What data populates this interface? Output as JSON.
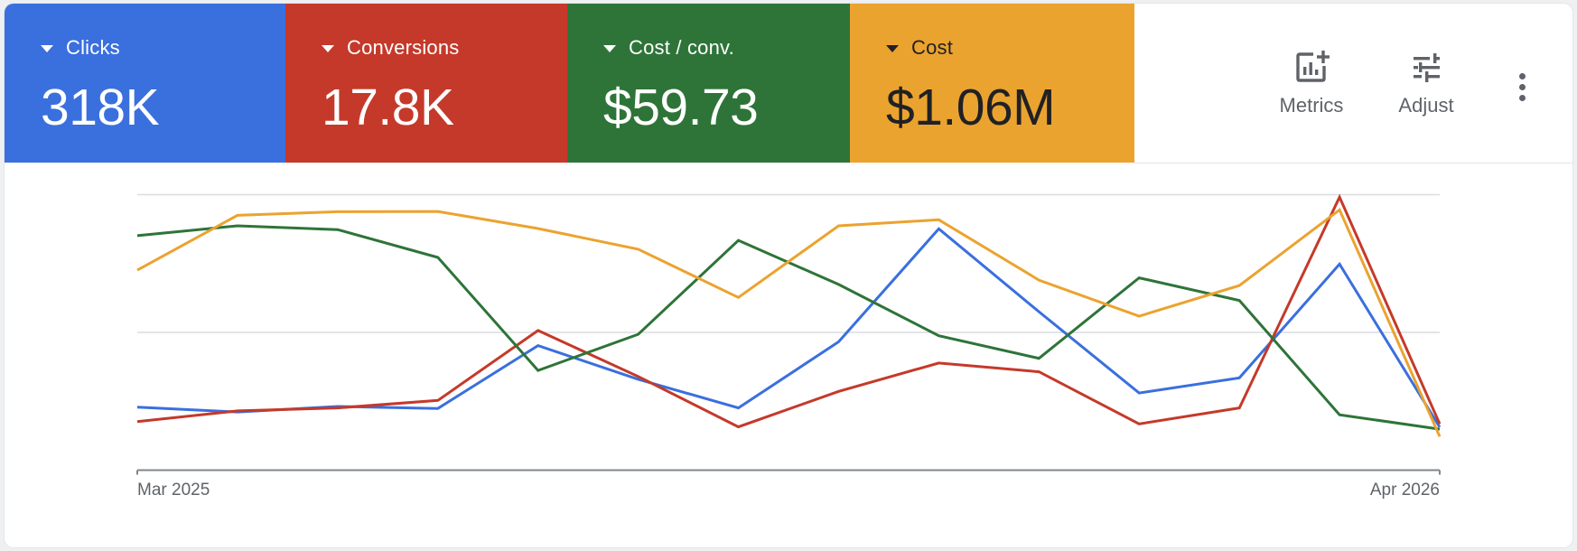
{
  "scorecards": [
    {
      "label": "Clicks",
      "value": "318K",
      "bg": "#3a6fde",
      "fg": "#ffffff",
      "icon": "dropdown-triangle-icon"
    },
    {
      "label": "Conversions",
      "value": "17.8K",
      "bg": "#c5392a",
      "fg": "#ffffff",
      "icon": "dropdown-triangle-icon"
    },
    {
      "label": "Cost / conv.",
      "value": "$59.73",
      "bg": "#2e7438",
      "fg": "#ffffff",
      "icon": "dropdown-triangle-icon"
    },
    {
      "label": "Cost",
      "value": "$1.06M",
      "bg": "#eba32f",
      "fg": "#202124",
      "icon": "dropdown-triangle-icon"
    }
  ],
  "toolbar": {
    "metrics_label": "Metrics",
    "metrics_icon": "add-chart-icon",
    "adjust_label": "Adjust",
    "adjust_icon": "tune-sliders-icon",
    "more_icon": "more-vert-icon"
  },
  "chart_data": {
    "type": "line",
    "title": "",
    "xlabel": "",
    "ylabel": "",
    "x": [
      "Mar 2025",
      "Apr 2025",
      "May 2025",
      "Jun 2025",
      "Jul 2025",
      "Aug 2025",
      "Sep 2025",
      "Oct 2025",
      "Nov 2025",
      "Dec 2025",
      "Jan 2026",
      "Feb 2026",
      "Mar 2026",
      "Apr 2026"
    ],
    "x_tick_labels": [
      "Mar 2025",
      "Apr 2026"
    ],
    "y_scale_note": "Each series uses its own unlabeled axis; values normalized 0-100 relative to top gridline",
    "ylim": [
      0,
      100
    ],
    "grid": true,
    "gridlines": [
      50,
      100
    ],
    "legend": "scorecards-above",
    "series": [
      {
        "name": "Clicks",
        "color": "#3a6fde",
        "values": [
          22.9,
          21.1,
          23.1,
          22.4,
          45.2,
          33.0,
          22.6,
          46.6,
          87.6,
          57.5,
          28.0,
          33.5,
          74.8,
          15.6
        ]
      },
      {
        "name": "Conversions",
        "color": "#c5392a",
        "values": [
          17.6,
          21.5,
          22.6,
          25.3,
          50.7,
          34.0,
          15.7,
          28.6,
          38.9,
          35.7,
          16.8,
          22.6,
          99.1,
          16.8
        ]
      },
      {
        "name": "Cost / conv.",
        "color": "#2e7438",
        "values": [
          85.1,
          88.7,
          87.3,
          77.2,
          36.2,
          49.3,
          83.4,
          67.4,
          48.8,
          40.6,
          69.8,
          61.6,
          20.1,
          14.9
        ]
      },
      {
        "name": "Cost",
        "color": "#eba32f",
        "values": [
          72.6,
          92.5,
          93.8,
          93.9,
          87.7,
          80.2,
          62.7,
          88.7,
          90.9,
          69.0,
          55.9,
          67.0,
          94.5,
          12.2
        ]
      }
    ]
  }
}
